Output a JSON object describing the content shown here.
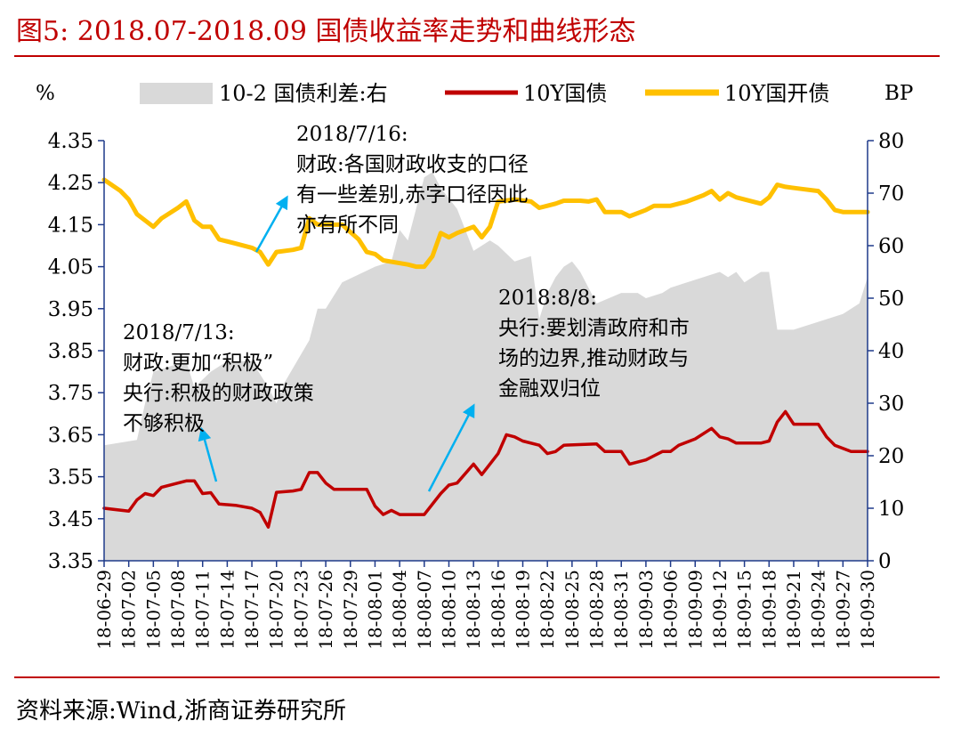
{
  "header": {
    "title": "图5:   2018.07-2018.09 国债收益率走势和曲线形态"
  },
  "footer": {
    "source": "资料来源:Wind,浙商证券研究所"
  },
  "colors": {
    "title": "#c00000",
    "area": "#d9d9d9",
    "line_10y_gov": "#c00000",
    "line_10y_cdb": "#ffc000",
    "axis": "#1f3a8a",
    "arrow": "#00b0f0"
  },
  "chart_data": {
    "type": "line",
    "left_axis_unit": "%",
    "right_axis_unit": "BP",
    "ylim_left": [
      3.35,
      4.35
    ],
    "ylim_right": [
      0,
      80
    ],
    "y_ticks_left": [
      "4.35",
      "4.25",
      "4.15",
      "4.05",
      "3.95",
      "3.85",
      "3.75",
      "3.65",
      "3.55",
      "3.45",
      "3.35"
    ],
    "y_ticks_right": [
      "80",
      "70",
      "60",
      "50",
      "40",
      "30",
      "20",
      "10",
      "0"
    ],
    "x_tick_labels": [
      "18-06-29",
      "18-07-02",
      "18-07-05",
      "18-07-08",
      "18-07-11",
      "18-07-14",
      "18-07-17",
      "18-07-20",
      "18-07-23",
      "18-07-26",
      "18-07-29",
      "18-08-01",
      "18-08-04",
      "18-08-07",
      "18-08-10",
      "18-08-13",
      "18-08-16",
      "18-08-19",
      "18-08-22",
      "18-08-25",
      "18-08-28",
      "18-08-31",
      "18-09-03",
      "18-09-06",
      "18-09-09",
      "18-09-12",
      "18-09-15",
      "18-09-18",
      "18-09-21",
      "18-09-24",
      "18-09-27",
      "18-09-30"
    ],
    "x_range": [
      "18-06-29",
      "18-09-30"
    ],
    "legend": [
      "10-2 国债利差:右",
      "10Y国债",
      "10Y国开债"
    ],
    "series": [
      {
        "name": "10-2 国债利差:右",
        "type": "area",
        "axis": "right",
        "points": [
          [
            "18-06-29",
            22
          ],
          [
            "18-07-03",
            23
          ],
          [
            "18-07-04",
            30
          ],
          [
            "18-07-05",
            36
          ],
          [
            "18-07-09",
            38
          ],
          [
            "18-07-10",
            33
          ],
          [
            "18-07-12",
            36
          ],
          [
            "18-07-14",
            38
          ],
          [
            "18-07-17",
            38
          ],
          [
            "18-07-19",
            33
          ],
          [
            "18-07-20",
            30
          ],
          [
            "18-07-21",
            34
          ],
          [
            "18-07-24",
            42
          ],
          [
            "18-07-25",
            48
          ],
          [
            "18-07-26",
            48
          ],
          [
            "18-07-28",
            53
          ],
          [
            "18-08-01",
            56
          ],
          [
            "18-08-03",
            57
          ],
          [
            "18-08-04",
            63
          ],
          [
            "18-08-05",
            61
          ],
          [
            "18-08-06",
            67
          ],
          [
            "18-08-07",
            73
          ],
          [
            "18-08-08",
            74
          ],
          [
            "18-08-09",
            71
          ],
          [
            "18-08-11",
            67
          ],
          [
            "18-08-13",
            59
          ],
          [
            "18-08-15",
            61
          ],
          [
            "18-08-16",
            60
          ],
          [
            "18-08-18",
            57
          ],
          [
            "18-08-20",
            58
          ],
          [
            "18-08-21",
            46
          ],
          [
            "18-08-22",
            51
          ],
          [
            "18-08-23",
            54
          ],
          [
            "18-08-24",
            56
          ],
          [
            "18-08-25",
            57
          ],
          [
            "18-08-26",
            55
          ],
          [
            "18-08-28",
            49
          ],
          [
            "18-08-31",
            51
          ],
          [
            "18-09-02",
            51
          ],
          [
            "18-09-03",
            50
          ],
          [
            "18-09-05",
            51
          ],
          [
            "18-09-06",
            52
          ],
          [
            "18-09-10",
            54
          ],
          [
            "18-09-12",
            55
          ],
          [
            "18-09-13",
            54
          ],
          [
            "18-09-14",
            55
          ],
          [
            "18-09-15",
            53
          ],
          [
            "18-09-16",
            54
          ],
          [
            "18-09-17",
            55
          ],
          [
            "18-09-18",
            55
          ],
          [
            "18-09-19",
            44
          ],
          [
            "18-09-21",
            44
          ],
          [
            "18-09-25",
            46
          ],
          [
            "18-09-27",
            47
          ],
          [
            "18-09-29",
            49
          ],
          [
            "18-09-30",
            54
          ]
        ]
      },
      {
        "name": "10Y国债",
        "type": "line",
        "axis": "left",
        "points": [
          [
            "18-06-29",
            3.475
          ],
          [
            "18-07-02",
            3.468
          ],
          [
            "18-07-03",
            3.495
          ],
          [
            "18-07-04",
            3.51
          ],
          [
            "18-07-05",
            3.505
          ],
          [
            "18-07-06",
            3.525
          ],
          [
            "18-07-08",
            3.535
          ],
          [
            "18-07-09",
            3.54
          ],
          [
            "18-07-10",
            3.54
          ],
          [
            "18-07-11",
            3.51
          ],
          [
            "18-07-12",
            3.512
          ],
          [
            "18-07-13",
            3.485
          ],
          [
            "18-07-15",
            3.482
          ],
          [
            "18-07-17",
            3.475
          ],
          [
            "18-07-18",
            3.465
          ],
          [
            "18-07-19",
            3.43
          ],
          [
            "18-07-20",
            3.513
          ],
          [
            "18-07-22",
            3.516
          ],
          [
            "18-07-23",
            3.52
          ],
          [
            "18-07-24",
            3.56
          ],
          [
            "18-07-25",
            3.56
          ],
          [
            "18-07-26",
            3.535
          ],
          [
            "18-07-27",
            3.52
          ],
          [
            "18-07-31",
            3.52
          ],
          [
            "18-08-01",
            3.48
          ],
          [
            "18-08-02",
            3.46
          ],
          [
            "18-08-03",
            3.47
          ],
          [
            "18-08-04",
            3.46
          ],
          [
            "18-08-07",
            3.46
          ],
          [
            "18-08-09",
            3.51
          ],
          [
            "18-08-10",
            3.53
          ],
          [
            "18-08-11",
            3.535
          ],
          [
            "18-08-13",
            3.58
          ],
          [
            "18-08-14",
            3.555
          ],
          [
            "18-08-15",
            3.58
          ],
          [
            "18-08-16",
            3.605
          ],
          [
            "18-08-17",
            3.65
          ],
          [
            "18-08-18",
            3.645
          ],
          [
            "18-08-19",
            3.635
          ],
          [
            "18-08-21",
            3.625
          ],
          [
            "18-08-22",
            3.605
          ],
          [
            "18-08-23",
            3.61
          ],
          [
            "18-08-24",
            3.625
          ],
          [
            "18-08-28",
            3.628
          ],
          [
            "18-08-29",
            3.61
          ],
          [
            "18-08-31",
            3.61
          ],
          [
            "18-09-01",
            3.58
          ],
          [
            "18-09-03",
            3.59
          ],
          [
            "18-09-04",
            3.6
          ],
          [
            "18-09-05",
            3.61
          ],
          [
            "18-09-06",
            3.61
          ],
          [
            "18-09-07",
            3.625
          ],
          [
            "18-09-09",
            3.64
          ],
          [
            "18-09-11",
            3.665
          ],
          [
            "18-09-12",
            3.645
          ],
          [
            "18-09-13",
            3.64
          ],
          [
            "18-09-14",
            3.63
          ],
          [
            "18-09-17",
            3.63
          ],
          [
            "18-09-18",
            3.635
          ],
          [
            "18-09-19",
            3.68
          ],
          [
            "18-09-20",
            3.705
          ],
          [
            "18-09-21",
            3.675
          ],
          [
            "18-09-24",
            3.675
          ],
          [
            "18-09-25",
            3.645
          ],
          [
            "18-09-26",
            3.625
          ],
          [
            "18-09-28",
            3.61
          ],
          [
            "18-09-30",
            3.61
          ]
        ]
      },
      {
        "name": "10Y国开债",
        "type": "line",
        "axis": "left",
        "points": [
          [
            "18-06-29",
            4.257
          ],
          [
            "18-07-01",
            4.23
          ],
          [
            "18-07-02",
            4.21
          ],
          [
            "18-07-03",
            4.175
          ],
          [
            "18-07-04",
            4.16
          ],
          [
            "18-07-05",
            4.145
          ],
          [
            "18-07-06",
            4.165
          ],
          [
            "18-07-08",
            4.19
          ],
          [
            "18-07-09",
            4.205
          ],
          [
            "18-07-10",
            4.16
          ],
          [
            "18-07-11",
            4.145
          ],
          [
            "18-07-12",
            4.145
          ],
          [
            "18-07-13",
            4.115
          ],
          [
            "18-07-15",
            4.105
          ],
          [
            "18-07-17",
            4.095
          ],
          [
            "18-07-18",
            4.085
          ],
          [
            "18-07-19",
            4.055
          ],
          [
            "18-07-20",
            4.085
          ],
          [
            "18-07-22",
            4.09
          ],
          [
            "18-07-23",
            4.095
          ],
          [
            "18-07-24",
            4.165
          ],
          [
            "18-07-25",
            4.15
          ],
          [
            "18-07-26",
            4.15
          ],
          [
            "18-07-28",
            4.15
          ],
          [
            "18-07-30",
            4.115
          ],
          [
            "18-07-31",
            4.085
          ],
          [
            "18-08-01",
            4.08
          ],
          [
            "18-08-02",
            4.065
          ],
          [
            "18-08-05",
            4.055
          ],
          [
            "18-08-06",
            4.05
          ],
          [
            "18-08-07",
            4.05
          ],
          [
            "18-08-08",
            4.075
          ],
          [
            "18-08-09",
            4.13
          ],
          [
            "18-08-10",
            4.12
          ],
          [
            "18-08-11",
            4.13
          ],
          [
            "18-08-13",
            4.145
          ],
          [
            "18-08-14",
            4.12
          ],
          [
            "18-08-15",
            4.145
          ],
          [
            "18-08-16",
            4.205
          ],
          [
            "18-08-18",
            4.21
          ],
          [
            "18-08-20",
            4.205
          ],
          [
            "18-08-21",
            4.19
          ],
          [
            "18-08-22",
            4.195
          ],
          [
            "18-08-23",
            4.2
          ],
          [
            "18-08-24",
            4.207
          ],
          [
            "18-08-26",
            4.207
          ],
          [
            "18-08-27",
            4.205
          ],
          [
            "18-08-28",
            4.21
          ],
          [
            "18-08-29",
            4.18
          ],
          [
            "18-08-31",
            4.18
          ],
          [
            "18-09-01",
            4.17
          ],
          [
            "18-09-03",
            4.185
          ],
          [
            "18-09-04",
            4.195
          ],
          [
            "18-09-06",
            4.195
          ],
          [
            "18-09-08",
            4.205
          ],
          [
            "18-09-10",
            4.22
          ],
          [
            "18-09-11",
            4.23
          ],
          [
            "18-09-12",
            4.21
          ],
          [
            "18-09-13",
            4.225
          ],
          [
            "18-09-14",
            4.215
          ],
          [
            "18-09-15",
            4.21
          ],
          [
            "18-09-17",
            4.2
          ],
          [
            "18-09-18",
            4.215
          ],
          [
            "18-09-19",
            4.245
          ],
          [
            "18-09-20",
            4.24
          ],
          [
            "18-09-22",
            4.235
          ],
          [
            "18-09-24",
            4.23
          ],
          [
            "18-09-25",
            4.21
          ],
          [
            "18-09-26",
            4.185
          ],
          [
            "18-09-27",
            4.18
          ],
          [
            "18-09-30",
            4.18
          ]
        ]
      }
    ],
    "annotations": [
      {
        "lines": [
          "2018/7/16:",
          "财政:各国财政收支的口径",
          "有一些差别,赤字口径因此",
          "亦有所不同"
        ]
      },
      {
        "lines": [
          "2018/7/13:",
          "财政:更加“积极”",
          "央行:积极的财政政策",
          "不够积极"
        ]
      },
      {
        "lines": [
          "2018:8/8:",
          "央行:要划清政府和市",
          "场的边界,推动财政与",
          "金融双归位"
        ]
      }
    ]
  }
}
